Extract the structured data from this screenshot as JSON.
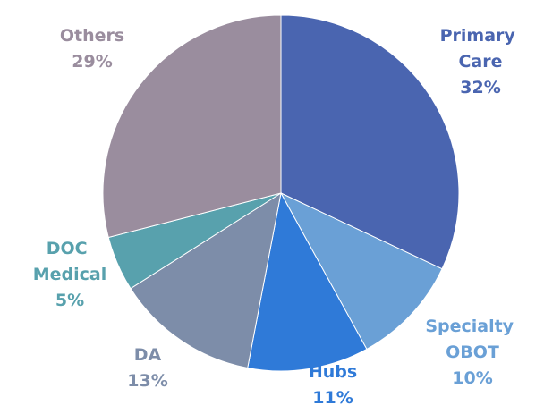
{
  "chart_data": {
    "type": "pie",
    "categories": [
      "Primary Care",
      "Specialty OBOT",
      "Hubs",
      "DA",
      "DOC Medical",
      "Others"
    ],
    "values": [
      32,
      10,
      11,
      13,
      5,
      29
    ],
    "value_labels": [
      "32%",
      "10%",
      "11%",
      "13%",
      "5%",
      "29%"
    ],
    "colors": [
      "#4a65b0",
      "#6aa0d6",
      "#2f7ad8",
      "#7d8da9",
      "#58a1ad",
      "#9a8d9e"
    ]
  }
}
